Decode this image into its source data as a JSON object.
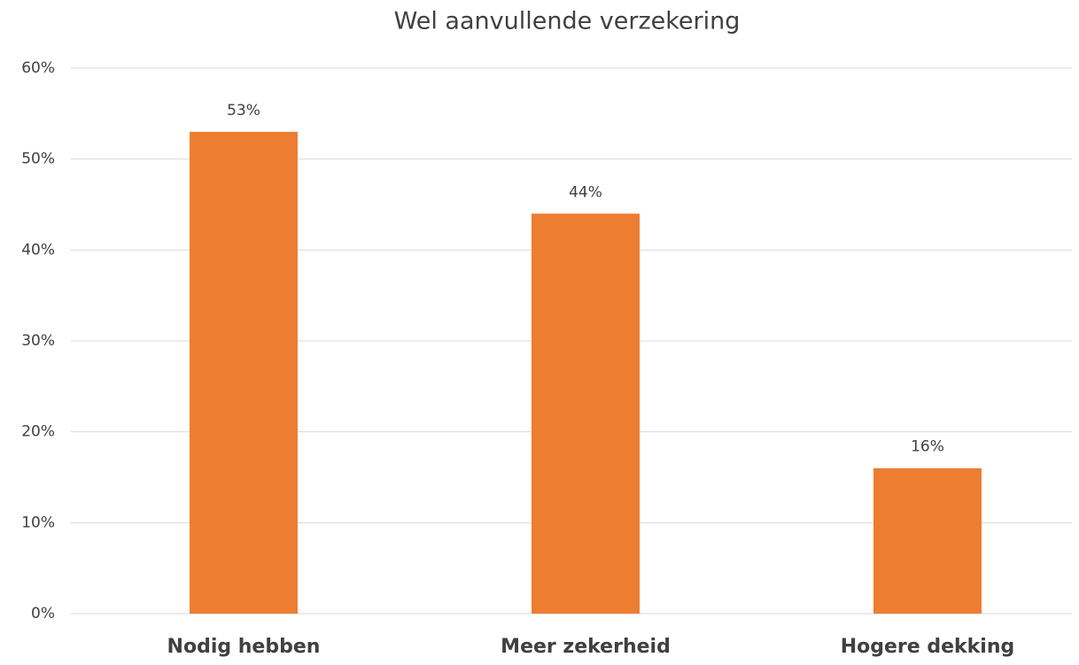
{
  "chart_data": {
    "type": "bar",
    "title": "Wel aanvullende verzekering",
    "categories": [
      "Nodig hebben",
      "Meer zekerheid",
      "Hogere dekking"
    ],
    "values": [
      53,
      44,
      16
    ],
    "value_labels": [
      "53%",
      "44%",
      "16%"
    ],
    "color": "#ed7d31",
    "ylim": [
      0,
      60
    ],
    "yticks": [
      {
        "value": 0,
        "label": "0%"
      },
      {
        "value": 10,
        "label": "10%"
      },
      {
        "value": 20,
        "label": "20%"
      },
      {
        "value": 30,
        "label": "30%"
      },
      {
        "value": 40,
        "label": "40%"
      },
      {
        "value": 50,
        "label": "50%"
      },
      {
        "value": 60,
        "label": "60%"
      }
    ],
    "grid": true
  }
}
